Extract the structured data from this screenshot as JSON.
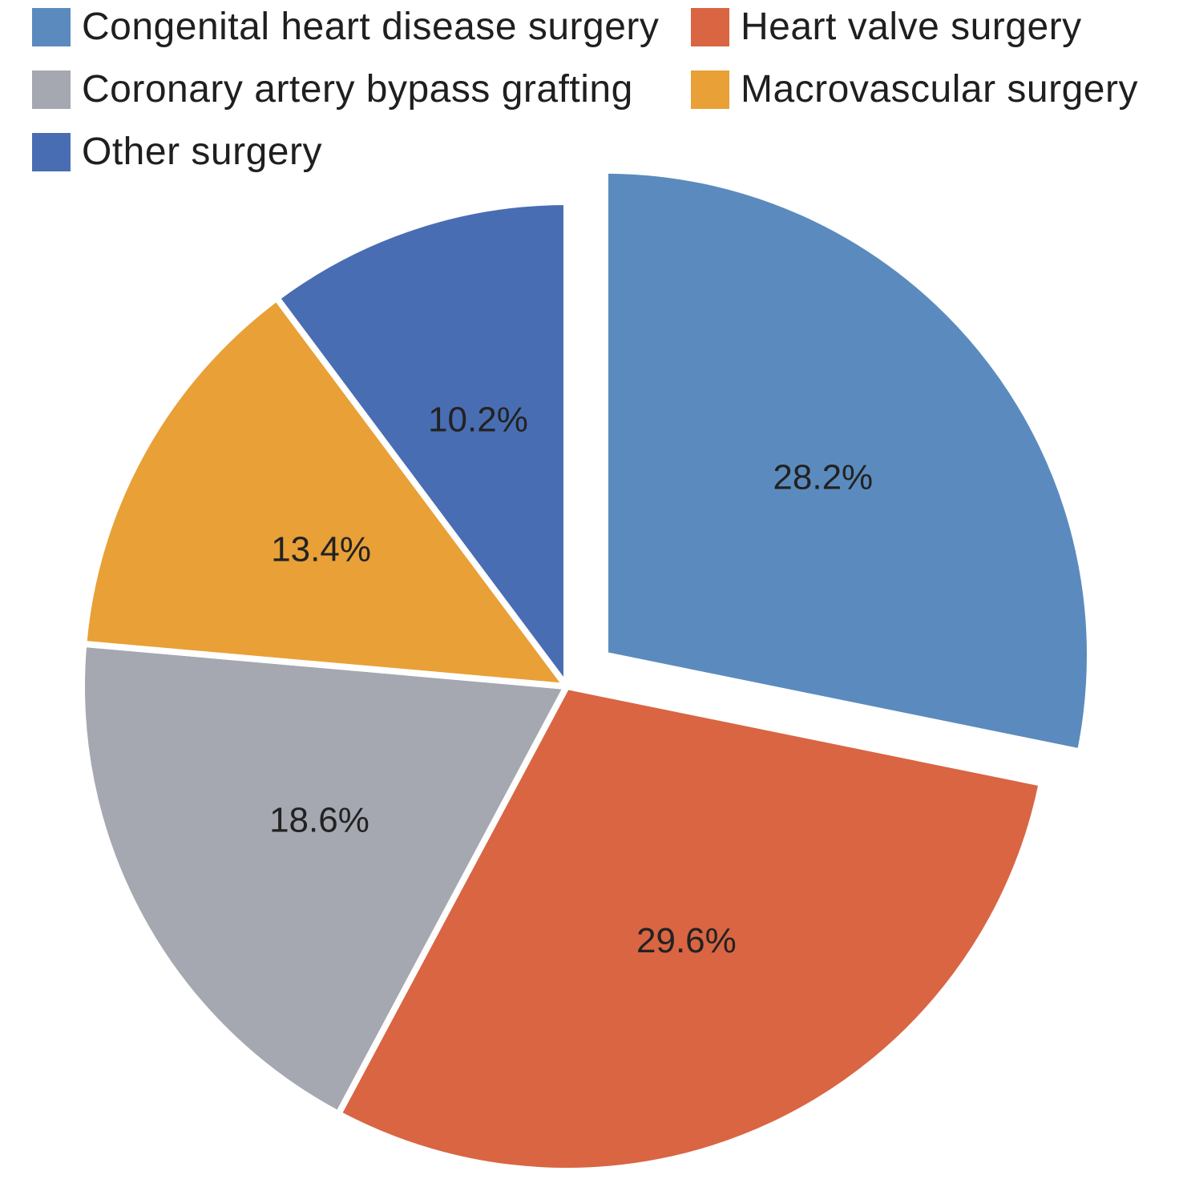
{
  "chart_data": {
    "type": "pie",
    "title": "",
    "legend_position": "top",
    "start_angle_deg": 0,
    "direction": "clockwise",
    "slices": [
      {
        "name": "Congenital heart disease surgery",
        "value": 28.2,
        "label": "28.2%",
        "color": "#5b8bbe",
        "exploded": true
      },
      {
        "name": "Heart valve surgery",
        "value": 29.6,
        "label": "29.6%",
        "color": "#d96543",
        "exploded": false
      },
      {
        "name": "Coronary artery bypass grafting",
        "value": 18.6,
        "label": "18.6%",
        "color": "#a5a8b0",
        "exploded": false
      },
      {
        "name": "Macrovascular surgery",
        "value": 13.4,
        "label": "13.4%",
        "color": "#e8a037",
        "exploded": false
      },
      {
        "name": "Other surgery",
        "value": 10.2,
        "label": "10.2%",
        "color": "#496db2",
        "exploded": false
      }
    ]
  }
}
